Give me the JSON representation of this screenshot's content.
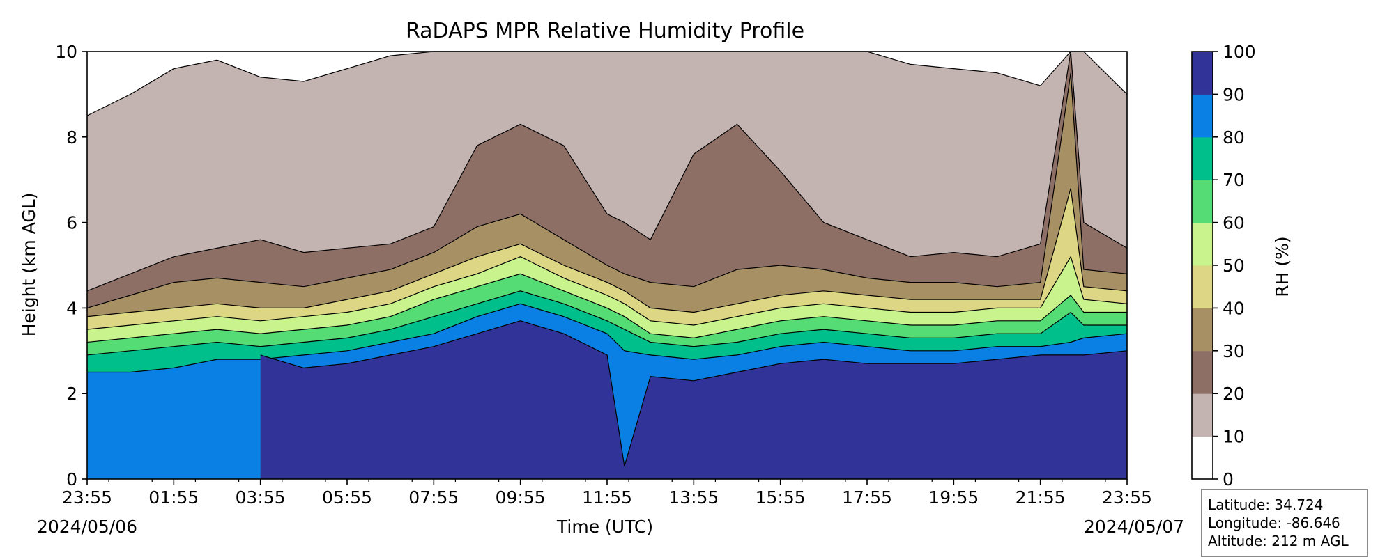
{
  "chart_data": {
    "type": "heatmap",
    "title": "RaDAPS MPR Relative Humidity Profile",
    "xlabel": "Time (UTC)",
    "ylabel": "Height (km AGL)",
    "x_ticks": [
      "23:55",
      "01:55",
      "03:55",
      "05:55",
      "07:55",
      "09:55",
      "11:55",
      "13:55",
      "15:55",
      "17:55",
      "19:55",
      "21:55",
      "23:55"
    ],
    "start_date": "2024/05/06",
    "end_date": "2024/05/07",
    "ylim": [
      0,
      10
    ],
    "y_ticks": [
      0,
      2,
      4,
      6,
      8,
      10
    ],
    "colorbar": {
      "label": "RH (%)",
      "levels": [
        0,
        10,
        20,
        30,
        40,
        50,
        60,
        70,
        80,
        90,
        100
      ],
      "colors": [
        "#ffffff",
        "#c4b4b1",
        "#8d6f66",
        "#a89065",
        "#dcd685",
        "#c9f38d",
        "#55dc74",
        "#00bf8b",
        "#0b80e4",
        "#313399"
      ]
    },
    "rh_profile": {
      "x_hours": [
        0,
        1,
        2,
        3,
        4,
        5,
        6,
        7,
        8,
        9,
        10,
        11,
        12,
        12.4,
        13,
        14,
        15,
        16,
        17,
        18,
        19,
        20,
        21,
        22,
        22.7,
        23,
        24
      ],
      "contour_heights_km": {
        "10": [
          8.5,
          9.0,
          9.6,
          9.8,
          9.4,
          9.3,
          9.6,
          9.9,
          10,
          10,
          10,
          10,
          10,
          10,
          10,
          10,
          10,
          10,
          10,
          10,
          9.7,
          9.6,
          9.5,
          9.2,
          10,
          10,
          9.0
        ],
        "20": [
          4.4,
          4.8,
          5.2,
          5.4,
          5.6,
          5.3,
          5.4,
          5.5,
          5.9,
          7.8,
          8.3,
          7.8,
          6.2,
          6.0,
          5.6,
          7.6,
          8.3,
          7.2,
          6.0,
          5.6,
          5.2,
          5.3,
          5.2,
          5.5,
          10,
          6.0,
          5.4
        ],
        "30": [
          4.0,
          4.3,
          4.6,
          4.7,
          4.6,
          4.5,
          4.7,
          4.9,
          5.3,
          5.9,
          6.2,
          5.6,
          5.0,
          4.8,
          4.6,
          4.5,
          4.9,
          5.0,
          4.9,
          4.7,
          4.6,
          4.6,
          4.5,
          4.6,
          9.5,
          4.9,
          4.8
        ],
        "40": [
          3.8,
          3.9,
          4.0,
          4.1,
          4.0,
          4.0,
          4.2,
          4.4,
          4.8,
          5.2,
          5.5,
          5.0,
          4.6,
          4.4,
          4.0,
          3.9,
          4.1,
          4.3,
          4.4,
          4.3,
          4.2,
          4.2,
          4.2,
          4.2,
          6.8,
          4.5,
          4.4
        ],
        "50": [
          3.5,
          3.6,
          3.7,
          3.8,
          3.7,
          3.8,
          3.9,
          4.1,
          4.5,
          4.8,
          5.2,
          4.7,
          4.3,
          4.1,
          3.7,
          3.6,
          3.8,
          4.0,
          4.1,
          4.0,
          3.9,
          3.9,
          4.0,
          4.0,
          5.2,
          4.2,
          4.1
        ],
        "60": [
          3.2,
          3.3,
          3.4,
          3.5,
          3.4,
          3.5,
          3.6,
          3.8,
          4.2,
          4.5,
          4.8,
          4.4,
          4.0,
          3.8,
          3.4,
          3.3,
          3.5,
          3.7,
          3.8,
          3.7,
          3.6,
          3.6,
          3.7,
          3.7,
          4.3,
          3.9,
          3.9
        ],
        "70": [
          2.9,
          3.0,
          3.1,
          3.2,
          3.1,
          3.2,
          3.3,
          3.5,
          3.8,
          4.1,
          4.4,
          4.1,
          3.7,
          3.5,
          3.2,
          3.1,
          3.2,
          3.4,
          3.5,
          3.4,
          3.3,
          3.3,
          3.4,
          3.4,
          3.9,
          3.6,
          3.6
        ],
        "80": [
          2.5,
          2.5,
          2.6,
          2.8,
          2.8,
          2.9,
          3.0,
          3.2,
          3.4,
          3.8,
          4.1,
          3.8,
          3.4,
          3.0,
          2.9,
          2.8,
          2.9,
          3.1,
          3.2,
          3.1,
          3.0,
          3.0,
          3.1,
          3.1,
          3.2,
          3.3,
          3.4
        ],
        "90": [
          null,
          null,
          null,
          null,
          2.9,
          2.6,
          2.7,
          2.9,
          3.1,
          3.4,
          3.7,
          3.4,
          2.9,
          0.3,
          2.4,
          2.3,
          2.5,
          2.7,
          2.8,
          2.7,
          2.7,
          2.7,
          2.8,
          2.9,
          2.9,
          2.9,
          3.0
        ]
      }
    }
  },
  "station": {
    "latitude": "Latitude: 34.724",
    "longitude": "Longitude: -86.646",
    "altitude": "Altitude: 212 m AGL"
  }
}
